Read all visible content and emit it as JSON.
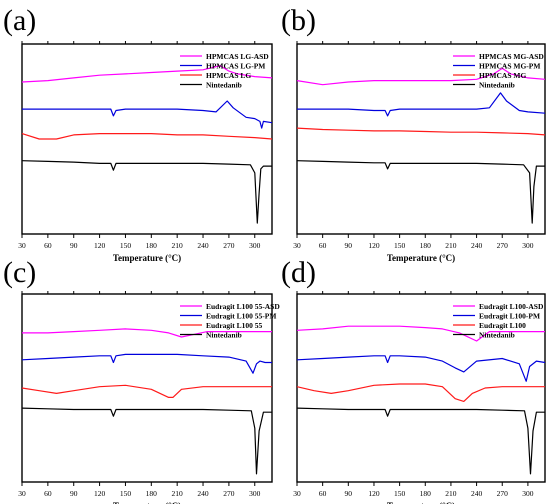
{
  "figure": {
    "panels": [
      {
        "letter": "(a)",
        "xlabel": "Temperature (°C)",
        "xticks": [
          30,
          60,
          90,
          120,
          150,
          180,
          210,
          240,
          270,
          300
        ],
        "legend": [
          "HPMCAS LG-ASD",
          "HPMCAS LG-PM",
          "HPMCAS LG",
          "Nintedanib"
        ]
      },
      {
        "letter": "(b)",
        "xlabel": "Temperature (°C)",
        "xticks": [
          30,
          60,
          90,
          120,
          150,
          180,
          210,
          240,
          270,
          300
        ],
        "legend": [
          "HPMCAS MG-ASD",
          "HPMCAS MG-PM",
          "HPMCAS MG",
          "Nintedanib"
        ]
      },
      {
        "letter": "(c)",
        "xlabel": "Temperature (°C)",
        "xticks": [
          30,
          60,
          90,
          120,
          150,
          180,
          210,
          240,
          270,
          300
        ],
        "legend": [
          "Eudragit L100 55-ASD",
          "Eudragit L100 55-PM",
          "Eudragit L100 55",
          "Nintedanib"
        ]
      },
      {
        "letter": "(d)",
        "xlabel": "Temperature (°C)",
        "xticks": [
          30,
          60,
          90,
          120,
          150,
          180,
          210,
          240,
          270,
          300
        ],
        "legend": [
          "Eudragit L100-ASD",
          "Eudragit L100-PM",
          "Eudragit L100",
          "Nintedanib"
        ]
      }
    ]
  },
  "colors": {
    "asd": "#ff00ff",
    "pm": "#0000dd",
    "polymer": "#ff1a1a",
    "drug": "#000000"
  },
  "chart_data": [
    {
      "type": "line",
      "xlabel": "Temperature (°C)",
      "xlim": [
        30,
        320
      ],
      "series": [
        {
          "name": "HPMCAS LG-ASD",
          "x": [
            30,
            60,
            90,
            120,
            150,
            180,
            210,
            240,
            260,
            270,
            280,
            300,
            320
          ],
          "y": [
            8.2,
            8.3,
            8.5,
            8.7,
            8.8,
            8.9,
            9.0,
            9.1,
            9.4,
            9.0,
            8.8,
            8.6,
            8.5
          ]
        },
        {
          "name": "HPMCAS LG-PM",
          "x": [
            30,
            60,
            90,
            120,
            133,
            136,
            139,
            150,
            180,
            210,
            240,
            255,
            268,
            275,
            290,
            300,
            306,
            308,
            310,
            320
          ],
          "y": [
            6.2,
            6.2,
            6.2,
            6.2,
            6.2,
            5.7,
            6.1,
            6.2,
            6.2,
            6.2,
            6.1,
            6.0,
            6.8,
            6.3,
            5.6,
            5.5,
            5.3,
            4.8,
            5.3,
            5.2
          ]
        },
        {
          "name": "HPMCAS LG",
          "x": [
            30,
            50,
            70,
            90,
            120,
            150,
            180,
            210,
            240,
            270,
            300,
            320
          ],
          "y": [
            4.4,
            4.0,
            4.0,
            4.3,
            4.4,
            4.4,
            4.4,
            4.3,
            4.3,
            4.2,
            4.1,
            4.0
          ]
        },
        {
          "name": "Nintedanib",
          "x": [
            30,
            60,
            90,
            120,
            133,
            136,
            139,
            150,
            180,
            210,
            240,
            270,
            295,
            300,
            303,
            305,
            307,
            310,
            320
          ],
          "y": [
            2.4,
            2.35,
            2.3,
            2.2,
            2.2,
            1.7,
            2.2,
            2.2,
            2.2,
            2.2,
            2.2,
            2.15,
            2.1,
            1.5,
            -2.2,
            0.0,
            1.8,
            2.0,
            2.0
          ]
        }
      ]
    },
    {
      "type": "line",
      "xlabel": "Temperature (°C)",
      "xlim": [
        30,
        320
      ],
      "series": [
        {
          "name": "HPMCAS MG-ASD",
          "x": [
            30,
            60,
            90,
            120,
            150,
            180,
            210,
            240,
            260,
            270,
            280,
            300,
            320
          ],
          "y": [
            8.3,
            8.0,
            8.2,
            8.3,
            8.3,
            8.3,
            8.3,
            8.4,
            8.8,
            9.2,
            8.8,
            8.5,
            8.4
          ]
        },
        {
          "name": "HPMCAS MG-PM",
          "x": [
            30,
            60,
            90,
            120,
            133,
            136,
            139,
            150,
            180,
            210,
            240,
            255,
            268,
            275,
            290,
            300,
            320
          ],
          "y": [
            6.2,
            6.2,
            6.2,
            6.1,
            6.1,
            5.7,
            6.1,
            6.2,
            6.2,
            6.2,
            6.2,
            6.3,
            7.4,
            6.8,
            6.1,
            6.0,
            5.9
          ]
        },
        {
          "name": "HPMCAS MG",
          "x": [
            30,
            60,
            90,
            120,
            150,
            180,
            210,
            240,
            270,
            300,
            320
          ],
          "y": [
            4.8,
            4.7,
            4.65,
            4.6,
            4.6,
            4.55,
            4.5,
            4.5,
            4.45,
            4.4,
            4.3
          ]
        },
        {
          "name": "Nintedanib",
          "x": [
            30,
            60,
            90,
            120,
            133,
            136,
            139,
            150,
            180,
            210,
            240,
            270,
            295,
            302,
            305,
            307,
            310,
            320
          ],
          "y": [
            2.4,
            2.35,
            2.3,
            2.25,
            2.25,
            1.8,
            2.2,
            2.2,
            2.2,
            2.2,
            2.2,
            2.15,
            2.1,
            1.5,
            -2.2,
            0.5,
            2.0,
            2.0
          ]
        }
      ]
    },
    {
      "type": "line",
      "xlabel": "Temperature (°C)",
      "xlim": [
        30,
        320
      ],
      "series": [
        {
          "name": "Eudragit L100 55-ASD",
          "x": [
            30,
            60,
            90,
            120,
            150,
            180,
            200,
            215,
            230,
            245,
            260,
            290,
            320
          ],
          "y": [
            8.1,
            8.1,
            8.2,
            8.3,
            8.4,
            8.3,
            8.1,
            7.8,
            8.0,
            8.2,
            8.2,
            8.2,
            8.2
          ]
        },
        {
          "name": "Eudragit L100 55-PM",
          "x": [
            30,
            60,
            90,
            120,
            133,
            136,
            139,
            150,
            180,
            210,
            240,
            270,
            290,
            298,
            302,
            306,
            312,
            320
          ],
          "y": [
            6.1,
            6.2,
            6.3,
            6.4,
            6.4,
            5.9,
            6.4,
            6.5,
            6.5,
            6.5,
            6.4,
            6.3,
            6.0,
            5.1,
            5.8,
            6.0,
            5.9,
            5.9
          ]
        },
        {
          "name": "Eudragit L100 55",
          "x": [
            30,
            50,
            70,
            90,
            120,
            150,
            180,
            200,
            205,
            215,
            240,
            270,
            300,
            320
          ],
          "y": [
            4.0,
            3.8,
            3.6,
            3.8,
            4.1,
            4.2,
            3.9,
            3.3,
            3.3,
            3.9,
            4.1,
            4.1,
            4.1,
            4.1
          ]
        },
        {
          "name": "Nintedanib",
          "x": [
            30,
            60,
            90,
            120,
            133,
            136,
            139,
            150,
            180,
            210,
            240,
            270,
            296,
            300,
            302,
            305,
            310,
            320
          ],
          "y": [
            2.5,
            2.45,
            2.4,
            2.4,
            2.4,
            1.9,
            2.4,
            2.4,
            2.4,
            2.4,
            2.4,
            2.35,
            2.3,
            1.0,
            -2.4,
            0.8,
            2.2,
            2.2
          ]
        }
      ]
    },
    {
      "type": "line",
      "xlabel": "Temperature (°C)",
      "xlim": [
        30,
        320
      ],
      "series": [
        {
          "name": "Eudragit L100-ASD",
          "x": [
            30,
            60,
            90,
            120,
            150,
            180,
            200,
            220,
            240,
            255,
            270,
            300,
            320
          ],
          "y": [
            8.3,
            8.4,
            8.6,
            8.6,
            8.6,
            8.5,
            8.4,
            8.1,
            7.5,
            8.2,
            8.2,
            8.2,
            8.2
          ]
        },
        {
          "name": "Eudragit L100-PM",
          "x": [
            30,
            60,
            90,
            120,
            133,
            136,
            139,
            150,
            180,
            200,
            215,
            225,
            240,
            270,
            290,
            298,
            302,
            310,
            320
          ],
          "y": [
            6.1,
            6.2,
            6.3,
            6.4,
            6.4,
            5.9,
            6.4,
            6.4,
            6.3,
            6.0,
            5.5,
            5.2,
            6.0,
            6.2,
            5.8,
            4.5,
            5.6,
            6.0,
            5.9
          ]
        },
        {
          "name": "Eudragit L100",
          "x": [
            30,
            50,
            70,
            90,
            120,
            150,
            180,
            200,
            215,
            225,
            235,
            250,
            270,
            300,
            320
          ],
          "y": [
            4.1,
            3.8,
            3.6,
            3.8,
            4.2,
            4.3,
            4.3,
            4.1,
            3.2,
            3.0,
            3.6,
            4.0,
            4.1,
            4.1,
            4.1
          ]
        },
        {
          "name": "Nintedanib",
          "x": [
            30,
            60,
            90,
            120,
            133,
            136,
            139,
            150,
            180,
            210,
            240,
            270,
            296,
            300,
            303,
            306,
            310,
            320
          ],
          "y": [
            2.5,
            2.45,
            2.4,
            2.4,
            2.4,
            1.9,
            2.4,
            2.4,
            2.4,
            2.4,
            2.4,
            2.35,
            2.3,
            1.0,
            -2.4,
            0.8,
            2.2,
            2.2
          ]
        }
      ]
    }
  ]
}
